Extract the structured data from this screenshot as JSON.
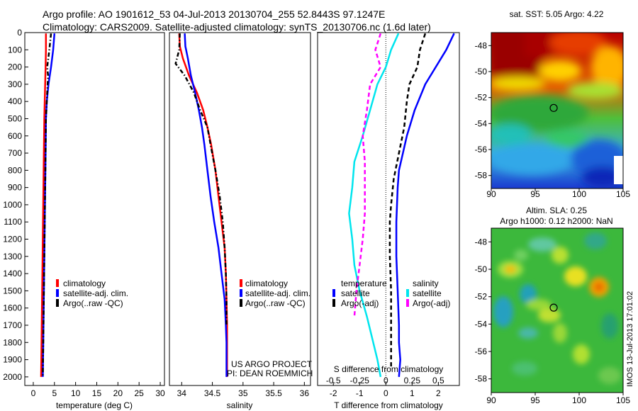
{
  "header": {
    "line1": "Argo profile: AO 1901612_53 04-Jul-2013 20130704_255 52.8443S 97.1247E",
    "line2": "Climatology: CARS2009. Satellite-adjusted climatology: synTS_20130706.nc (1.6d later)"
  },
  "chart_data": [
    {
      "type": "line",
      "xlabel": "temperature (deg C)",
      "ylabel": "",
      "xlim": [
        -2,
        31
      ],
      "ylim": [
        2050,
        0
      ],
      "xticks": [
        0,
        5,
        10,
        15,
        20,
        25,
        30
      ],
      "yticks": [
        0,
        100,
        200,
        300,
        400,
        500,
        600,
        700,
        800,
        900,
        1000,
        1100,
        1200,
        1300,
        1400,
        1500,
        1600,
        1700,
        1800,
        1900,
        2000
      ],
      "legend": [
        "climatology",
        "satellite-adj. clim.",
        "Argo(..raw -QC)"
      ],
      "series": [
        {
          "name": "climatology",
          "color": "#ff0000",
          "style": "solid",
          "x": [
            3.0,
            3.0,
            2.9,
            2.8,
            2.7,
            2.6,
            2.5,
            2.4,
            2.3,
            2.2,
            2.1,
            2.0,
            1.9,
            1.85
          ],
          "y": [
            5,
            100,
            200,
            300,
            400,
            500,
            700,
            900,
            1100,
            1300,
            1500,
            1700,
            1900,
            2000
          ]
        },
        {
          "name": "satellite-adj. clim.",
          "color": "#0000ff",
          "style": "solid",
          "x": [
            5.0,
            4.7,
            4.2,
            3.6,
            3.2,
            3.0,
            2.9,
            2.8,
            2.7,
            2.6,
            2.5,
            2.4,
            2.3,
            2.25
          ],
          "y": [
            5,
            100,
            200,
            300,
            400,
            500,
            700,
            900,
            1100,
            1300,
            1500,
            1700,
            1900,
            2000
          ]
        },
        {
          "name": "Argo(..raw -QC)",
          "color": "#000000",
          "style": "dashdot",
          "x": [
            4.2,
            3.8,
            3.3,
            3.5,
            3.2,
            3.0,
            2.9,
            2.8,
            2.7,
            2.6,
            2.5,
            2.4,
            2.3,
            2.25
          ],
          "y": [
            5,
            100,
            200,
            250,
            400,
            500,
            700,
            900,
            1100,
            1300,
            1500,
            1700,
            1900,
            2000
          ]
        }
      ]
    },
    {
      "type": "line",
      "xlabel": "salinity",
      "xlim": [
        33.8,
        36.1
      ],
      "ylim": [
        2050,
        0
      ],
      "xticks": [
        34,
        34.5,
        35,
        35.5,
        36
      ],
      "legend": [
        "climatology",
        "satellite-adj. clim.",
        "Argo(..raw -QC)"
      ],
      "annotation": [
        "US ARGO PROJECT",
        "PI: DEAN ROEMMICH"
      ],
      "series": [
        {
          "name": "climatology",
          "color": "#ff0000",
          "style": "solid",
          "x": [
            33.96,
            33.97,
            34.02,
            34.12,
            34.25,
            34.35,
            34.42,
            34.48,
            34.55,
            34.6,
            34.65,
            34.7,
            34.72,
            34.73,
            34.74,
            34.74,
            34.74,
            34.74
          ],
          "y": [
            5,
            80,
            150,
            250,
            350,
            450,
            550,
            650,
            800,
            950,
            1100,
            1250,
            1400,
            1550,
            1700,
            1800,
            1900,
            2000
          ]
        },
        {
          "name": "satellite-adj. clim.",
          "color": "#0000ff",
          "style": "solid",
          "x": [
            34.05,
            34.06,
            34.1,
            34.15,
            34.22,
            34.28,
            34.33,
            34.37,
            34.42,
            34.47,
            34.53,
            34.6,
            34.65,
            34.7,
            34.72,
            34.73,
            34.73,
            34.73
          ],
          "y": [
            5,
            80,
            150,
            250,
            350,
            450,
            550,
            650,
            800,
            950,
            1100,
            1250,
            1400,
            1550,
            1700,
            1800,
            1900,
            2000
          ]
        },
        {
          "name": "Argo(..raw -QC)",
          "color": "#000000",
          "style": "dashdot",
          "x": [
            33.97,
            33.96,
            33.9,
            34.05,
            34.2,
            34.3,
            34.42,
            34.47,
            34.55,
            34.62,
            34.67,
            34.7,
            34.72,
            34.73,
            34.73
          ],
          "y": [
            5,
            100,
            180,
            250,
            350,
            450,
            550,
            650,
            800,
            950,
            1100,
            1250,
            1400,
            1550,
            1700
          ]
        }
      ]
    },
    {
      "type": "line",
      "xlabel": "T difference from climatology",
      "xlabel_top": "S difference from climatology",
      "xlim": [
        -2.6,
        2.8
      ],
      "ylim": [
        2050,
        0
      ],
      "xticks": [
        -2,
        -1,
        0,
        1,
        2
      ],
      "xticks_top": [
        "-0.5",
        "-0.25",
        "0",
        "0.25",
        "0.5"
      ],
      "legend_temperature": {
        "title": "temperature",
        "items": [
          "satellite",
          "Argo(-adj)"
        ]
      },
      "legend_salinity": {
        "title": "salinity",
        "items": [
          "satellite",
          "Argo(-adj)"
        ]
      },
      "series": [
        {
          "name": "satellite",
          "group": "temperature",
          "color": "#0000ff",
          "style": "solid",
          "x": [
            2.6,
            2.3,
            1.9,
            1.5,
            1.1,
            0.8,
            0.65,
            0.5,
            0.45,
            0.4,
            0.4,
            0.45,
            0.5,
            0.5,
            0.55,
            0.5
          ],
          "y": [
            5,
            100,
            200,
            300,
            450,
            600,
            700,
            800,
            900,
            1100,
            1300,
            1500,
            1700,
            1800,
            1900,
            2000
          ]
        },
        {
          "name": "Argo(-adj)",
          "group": "temperature",
          "color": "#000000",
          "style": "dashed",
          "x": [
            1.5,
            1.3,
            1.2,
            0.9,
            0.8,
            0.7,
            0.5,
            0.3,
            0.2,
            0.15,
            0.15,
            0.2,
            0.2,
            0.2
          ],
          "y": [
            5,
            100,
            200,
            300,
            400,
            550,
            700,
            850,
            1000,
            1100,
            1300,
            1500,
            1700,
            1950
          ]
        },
        {
          "name": "satellite",
          "group": "salinity",
          "color": "#00e5ee",
          "style": "solid",
          "x": [
            0.12,
            0.05,
            0.0,
            -0.08,
            -0.15,
            -0.22,
            -0.3,
            -0.32,
            -0.35,
            -0.32,
            -0.3,
            -0.25,
            -0.18,
            -0.12,
            -0.08,
            -0.05
          ],
          "y": [
            5,
            100,
            200,
            300,
            450,
            600,
            750,
            900,
            1050,
            1200,
            1350,
            1500,
            1650,
            1800,
            1900,
            2000
          ]
        },
        {
          "name": "Argo(-adj)",
          "group": "salinity",
          "color": "#ff00ff",
          "style": "dashed",
          "x": [
            -0.05,
            -0.1,
            -0.05,
            -0.15,
            -0.18,
            -0.22,
            -0.2,
            -0.2,
            -0.2,
            -0.22,
            -0.25,
            -0.28,
            -0.3
          ],
          "y": [
            5,
            100,
            200,
            300,
            450,
            600,
            750,
            900,
            1050,
            1200,
            1350,
            1500,
            1650
          ]
        }
      ]
    },
    {
      "type": "heatmap",
      "title": "sat. SST: 5.05 Argo: 4.22",
      "xlim": [
        90,
        105
      ],
      "ylim": [
        -59,
        -47
      ],
      "xticks": [
        90,
        95,
        100,
        105
      ],
      "yticks": [
        -48,
        -50,
        -52,
        -54,
        -56,
        -58
      ],
      "marker": {
        "x": 97.1,
        "y": -52.8
      }
    },
    {
      "type": "heatmap",
      "title": "Altim. SLA: 0.25",
      "subtitle": "Argo h1000: 0.12 h2000: NaN",
      "xlim": [
        90,
        105
      ],
      "ylim": [
        -59,
        -47
      ],
      "xticks": [
        90,
        95,
        100,
        105
      ],
      "yticks": [
        -48,
        -50,
        -52,
        -54,
        -56,
        -58
      ],
      "marker": {
        "x": 97.1,
        "y": -52.8
      }
    }
  ],
  "side_stamp": "IMOS 13-Jul-2013 17:01:02"
}
